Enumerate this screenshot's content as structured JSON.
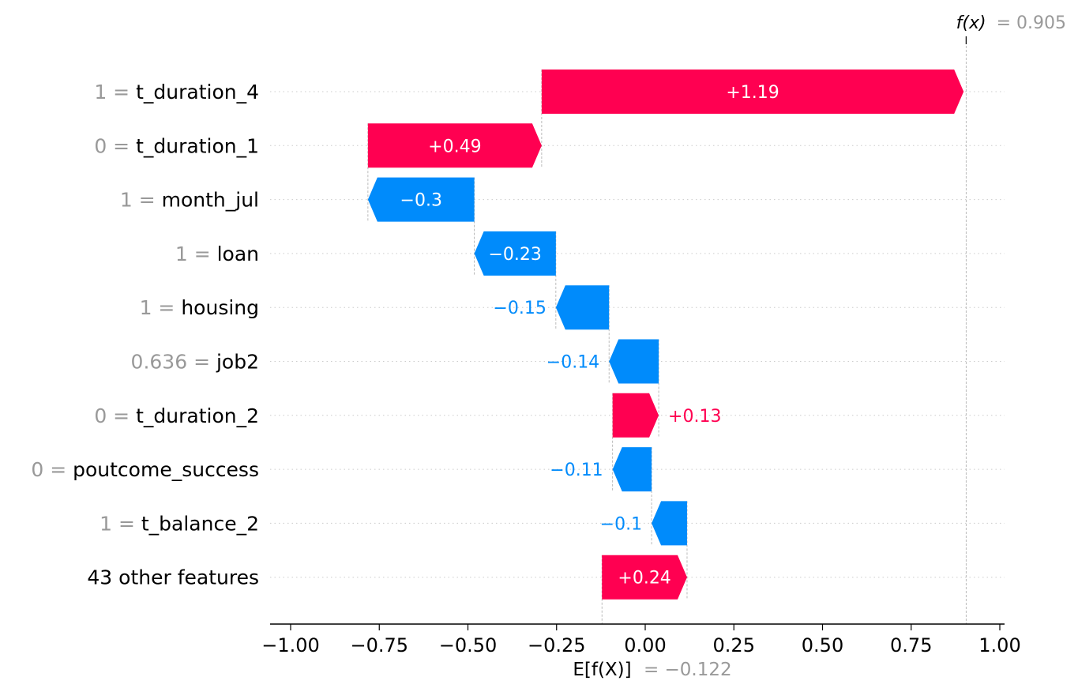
{
  "chart_data": {
    "type": "waterfall",
    "base_value": -0.122,
    "base_label_prefix": "E[f(X)]",
    "base_label_value": "= −0.122",
    "output_value": 0.905,
    "output_label_prefix": "f(x)",
    "output_label_value": "= 0.905",
    "xlim": [
      -1.05,
      1.015
    ],
    "x_ticks": [
      -1.0,
      -0.75,
      -0.5,
      -0.25,
      0.0,
      0.25,
      0.5,
      0.75,
      1.0
    ],
    "x_tick_labels": [
      "−1.00",
      "−0.75",
      "−0.50",
      "−0.25",
      "0.00",
      "0.25",
      "0.50",
      "0.75",
      "1.00"
    ],
    "colors": {
      "positive": "#ff0051",
      "negative": "#008bfb",
      "feature_value": "#999999"
    },
    "features": [
      {
        "value_text": "1 =",
        "name": "t_duration_4",
        "shap": 1.19,
        "label": "+1.19"
      },
      {
        "value_text": "0 =",
        "name": "t_duration_1",
        "shap": 0.49,
        "label": "+0.49"
      },
      {
        "value_text": "1 =",
        "name": "month_jul",
        "shap": -0.3,
        "label": "−0.3"
      },
      {
        "value_text": "1 =",
        "name": "loan",
        "shap": -0.23,
        "label": "−0.23"
      },
      {
        "value_text": "1 =",
        "name": "housing",
        "shap": -0.15,
        "label": "−0.15"
      },
      {
        "value_text": "0.636 =",
        "name": "job2",
        "shap": -0.14,
        "label": "−0.14"
      },
      {
        "value_text": "0 =",
        "name": "t_duration_2",
        "shap": 0.13,
        "label": "+0.13"
      },
      {
        "value_text": "0 =",
        "name": "poutcome_success",
        "shap": -0.11,
        "label": "−0.11"
      },
      {
        "value_text": "1 =",
        "name": "t_balance_2",
        "shap": -0.1,
        "label": "−0.1"
      },
      {
        "value_text": "",
        "name": "43 other features",
        "shap": 0.24,
        "label": "+0.24"
      }
    ]
  }
}
